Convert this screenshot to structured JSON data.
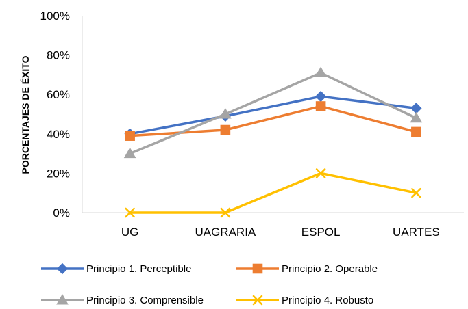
{
  "chart_data": {
    "type": "line",
    "title": "",
    "xlabel": "",
    "ylabel": "PORCENTAJES DE ÉXITO",
    "categories": [
      "UG",
      "UAGRARIA",
      "ESPOL",
      "UARTES"
    ],
    "ylim": [
      0,
      100
    ],
    "yticks": [
      "0%",
      "20%",
      "40%",
      "60%",
      "80%",
      "100%"
    ],
    "grid": false,
    "legend_position": "bottom",
    "series": [
      {
        "name": "Principio 1. Perceptible",
        "values": [
          40,
          49,
          59,
          53
        ],
        "color": "#4472C4",
        "marker": "diamond"
      },
      {
        "name": "Principio 2. Operable",
        "values": [
          39,
          42,
          54,
          41
        ],
        "color": "#ED7D31",
        "marker": "square"
      },
      {
        "name": "Principio 3. Comprensible",
        "values": [
          30,
          50,
          71,
          48
        ],
        "color": "#A5A5A5",
        "marker": "triangle"
      },
      {
        "name": "Principio 4. Robusto",
        "values": [
          0,
          0,
          20,
          10
        ],
        "color": "#FFC000",
        "marker": "x"
      }
    ]
  }
}
